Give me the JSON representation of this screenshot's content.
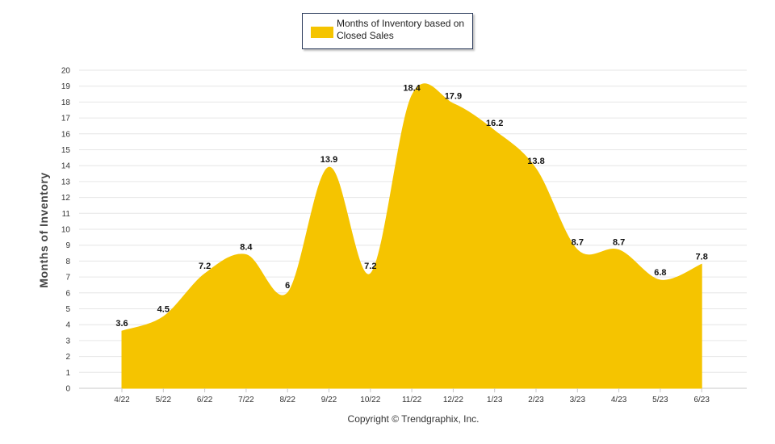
{
  "legend": {
    "label": "Months of Inventory based on Closed Sales"
  },
  "credit": "Copyright © Trendgraphix, Inc.",
  "colors": {
    "area": "#f5c400",
    "grid": "#e6e6e6",
    "axis": "#c8c8c8",
    "text": "#333333"
  },
  "chart_data": {
    "type": "area",
    "title": "",
    "xlabel": "",
    "ylabel": "Months of Inventory",
    "ylim": [
      0,
      20
    ],
    "yticks": [
      0,
      1,
      2,
      3,
      4,
      5,
      6,
      7,
      8,
      9,
      10,
      11,
      12,
      13,
      14,
      15,
      16,
      17,
      18,
      19,
      20
    ],
    "grid": true,
    "legend_position": "top-center",
    "categories": [
      "4/22",
      "5/22",
      "6/22",
      "7/22",
      "8/22",
      "9/22",
      "10/22",
      "11/22",
      "12/22",
      "1/23",
      "2/23",
      "3/23",
      "4/23",
      "5/23",
      "6/23"
    ],
    "series": [
      {
        "name": "Months of Inventory based on Closed Sales",
        "values": [
          3.6,
          4.5,
          7.2,
          8.4,
          6,
          13.9,
          7.2,
          18.4,
          17.9,
          16.2,
          13.8,
          8.7,
          8.7,
          6.8,
          7.8
        ],
        "labels": [
          "3.6",
          "4.5",
          "7.2",
          "8.4",
          "6",
          "13.9",
          "7.2",
          "18.4",
          "17.9",
          "16.2",
          "13.8",
          "8.7",
          "8.7",
          "6.8",
          "7.8"
        ]
      }
    ]
  }
}
